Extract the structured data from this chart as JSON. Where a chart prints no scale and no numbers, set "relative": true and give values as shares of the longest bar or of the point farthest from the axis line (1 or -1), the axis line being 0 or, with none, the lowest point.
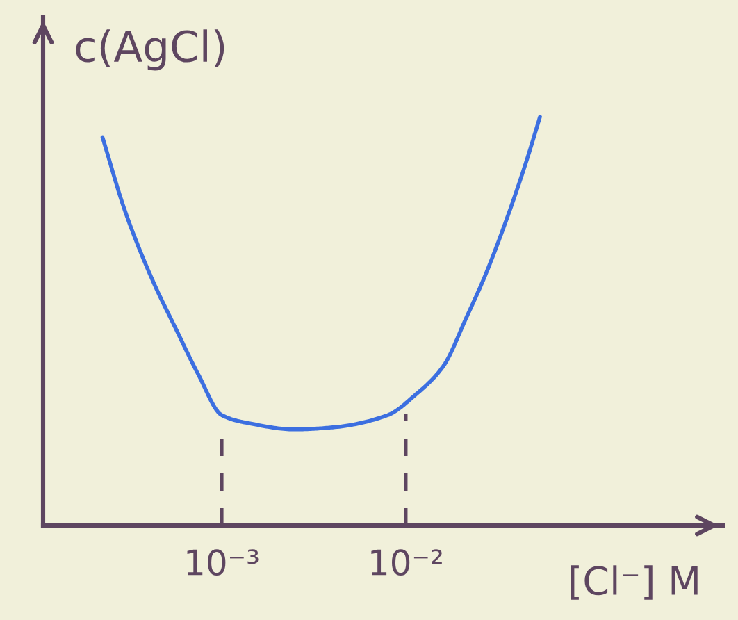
{
  "chart_data": {
    "type": "line",
    "ylabel": "c(AgCl)",
    "xlabel": "[Cl⁻] M",
    "x": [
      0.000225,
      0.000298,
      0.000421,
      0.000565,
      0.000745,
      0.001,
      0.00141,
      0.0025,
      0.004,
      0.00798,
      0.0113,
      0.016,
      0.0214,
      0.0269,
      0.036,
      0.0451,
      0.0536
    ],
    "values": [
      0.95,
      0.77,
      0.6,
      0.48,
      0.37,
      0.27,
      0.25,
      0.235,
      0.24,
      0.27,
      0.32,
      0.39,
      0.51,
      0.61,
      0.76,
      0.89,
      1
    ],
    "color": "#3c6fe0",
    "relative": true,
    "log": "x",
    "xlim": [
      0.000107,
      0.527
    ],
    "xticks": [
      {
        "value": 0.001,
        "label": "10⁻³"
      },
      {
        "value": 0.01,
        "label": "10⁻²"
      }
    ],
    "ref_lines": [
      {
        "axis": "x",
        "value": 0.001,
        "color": "#5e4660",
        "line_style": "dashed"
      },
      {
        "axis": "x",
        "value": 0.01,
        "color": "#5e4660",
        "line_style": "dashed"
      }
    ],
    "grid": false,
    "legend": false
  }
}
